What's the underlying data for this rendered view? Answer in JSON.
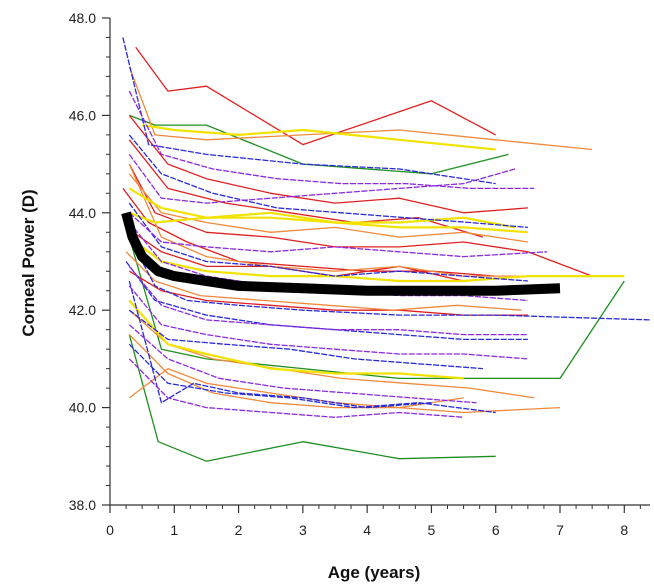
{
  "chart_data": {
    "type": "line",
    "title": "",
    "xlabel": "Age (years)",
    "ylabel": "Corneal Power (D)",
    "xlim": [
      0,
      8.4
    ],
    "ylim": [
      38.0,
      48.0
    ],
    "x_ticks": [
      "0",
      "1",
      "2",
      "3",
      "4",
      "5",
      "6",
      "7",
      "8"
    ],
    "y_ticks": [
      "38.0",
      "40.0",
      "42.0",
      "44.0",
      "46.0",
      "48.0"
    ],
    "grid": false,
    "legend": "none",
    "colors": {
      "red": "#e02020",
      "orange": "#f08a3c",
      "yellow": "#f2e200",
      "blue": "#2a2ad8",
      "purple": "#8a2be2",
      "green": "#1f8f1f",
      "mean": "#000000"
    },
    "mean_series": {
      "x": [
        0.25,
        0.35,
        0.5,
        0.75,
        1.0,
        1.5,
        2.0,
        3.0,
        4.0,
        5.0,
        6.0,
        7.0
      ],
      "y": [
        44.0,
        43.5,
        43.1,
        42.8,
        42.7,
        42.6,
        42.5,
        42.45,
        42.4,
        42.4,
        42.4,
        42.45
      ]
    },
    "series": [
      {
        "color": "green",
        "x": [
          0.3,
          0.75,
          1.5,
          3.0,
          4.5,
          6.0
        ],
        "y": [
          41.5,
          39.3,
          38.9,
          39.3,
          38.95,
          39.0
        ]
      },
      {
        "color": "green",
        "x": [
          0.3,
          0.8,
          1.5,
          3.0,
          4.5,
          6.0,
          7.0,
          8.0
        ],
        "y": [
          43.5,
          41.2,
          41.0,
          40.8,
          40.6,
          40.6,
          40.6,
          42.6
        ]
      },
      {
        "color": "green",
        "x": [
          0.3,
          0.7,
          1.5,
          3.0,
          5.0,
          6.2
        ],
        "y": [
          46.0,
          45.8,
          45.8,
          45.0,
          44.8,
          45.2
        ]
      },
      {
        "color": "red",
        "x": [
          0.4,
          0.9,
          1.5,
          3.0,
          5.0,
          6.0
        ],
        "y": [
          47.4,
          46.5,
          46.6,
          45.4,
          46.3,
          45.6
        ]
      },
      {
        "color": "red",
        "x": [
          0.3,
          0.9,
          1.5,
          2.5,
          3.5,
          4.5,
          5.5,
          6.5
        ],
        "y": [
          46.0,
          45.0,
          44.7,
          44.4,
          44.2,
          44.3,
          44.0,
          44.1
        ]
      },
      {
        "color": "red",
        "x": [
          0.3,
          0.7,
          1.5,
          2.5,
          3.5,
          4.5,
          5.5,
          6.5,
          7.5
        ],
        "y": [
          45.0,
          44.0,
          43.6,
          43.5,
          43.3,
          43.3,
          43.4,
          43.2,
          42.7
        ]
      },
      {
        "color": "red",
        "x": [
          0.2,
          0.6,
          1.2,
          2.0,
          3.0,
          4.0,
          5.0,
          6.0
        ],
        "y": [
          44.5,
          43.8,
          43.4,
          43.0,
          42.9,
          42.8,
          42.8,
          42.7
        ]
      },
      {
        "color": "red",
        "x": [
          0.25,
          0.8,
          1.5,
          2.5,
          3.5,
          4.5,
          5.5
        ],
        "y": [
          43.7,
          43.2,
          42.9,
          42.9,
          42.7,
          42.9,
          42.6
        ]
      },
      {
        "color": "red",
        "x": [
          0.3,
          0.8,
          1.5,
          2.5,
          3.5,
          4.5,
          5.5,
          6.5
        ],
        "y": [
          42.8,
          42.4,
          42.2,
          42.1,
          42.0,
          42.0,
          41.9,
          41.9
        ]
      },
      {
        "color": "red",
        "x": [
          0.3,
          0.9,
          1.8,
          2.8,
          3.8,
          4.8,
          5.8
        ],
        "y": [
          45.5,
          44.5,
          44.2,
          44.0,
          43.8,
          43.9,
          43.5
        ]
      },
      {
        "color": "orange",
        "x": [
          0.3,
          0.7,
          1.5,
          3.0,
          4.5,
          6.0,
          7.5
        ],
        "y": [
          47.0,
          45.6,
          45.5,
          45.6,
          45.7,
          45.5,
          45.3
        ]
      },
      {
        "color": "orange",
        "x": [
          0.3,
          0.8,
          1.5,
          2.5,
          3.5,
          4.5,
          5.5,
          6.5
        ],
        "y": [
          44.8,
          44.0,
          43.8,
          43.6,
          43.7,
          43.5,
          43.6,
          43.4
        ]
      },
      {
        "color": "orange",
        "x": [
          0.25,
          0.7,
          1.4,
          2.4,
          3.4,
          4.4,
          5.4,
          6.4
        ],
        "y": [
          43.2,
          42.6,
          42.3,
          42.2,
          42.1,
          42.0,
          42.1,
          42.0
        ]
      },
      {
        "color": "orange",
        "x": [
          0.3,
          0.9,
          1.6,
          2.6,
          3.6,
          4.6,
          5.6,
          6.6
        ],
        "y": [
          42.0,
          41.3,
          41.0,
          40.8,
          40.6,
          40.5,
          40.4,
          40.2
        ]
      },
      {
        "color": "orange",
        "x": [
          0.3,
          0.9,
          1.6,
          2.5,
          3.5,
          4.5,
          5.5,
          7.0
        ],
        "y": [
          41.5,
          40.7,
          40.3,
          40.1,
          40.0,
          40.0,
          39.9,
          40.0
        ]
      },
      {
        "color": "orange",
        "x": [
          0.3,
          0.9,
          1.5,
          2.5,
          3.5,
          4.5,
          5.5
        ],
        "y": [
          40.2,
          40.8,
          40.5,
          40.3,
          40.1,
          40.0,
          40.2
        ]
      },
      {
        "color": "orange",
        "x": [
          0.3,
          0.8,
          1.5,
          2.5,
          3.5,
          4.5,
          5.5,
          6.5
        ],
        "y": [
          45.0,
          43.5,
          43.1,
          42.9,
          42.8,
          42.9,
          42.7,
          42.7
        ]
      },
      {
        "color": "yellow",
        "x": [
          0.5,
          1.0,
          2.0,
          3.0,
          4.5,
          6.0
        ],
        "y": [
          45.8,
          45.7,
          45.6,
          45.7,
          45.5,
          45.3
        ]
      },
      {
        "color": "yellow",
        "x": [
          0.3,
          0.8,
          1.5,
          2.5,
          3.5,
          4.5,
          5.5,
          6.5
        ],
        "y": [
          44.5,
          44.1,
          43.9,
          43.9,
          43.8,
          43.7,
          43.7,
          43.6
        ]
      },
      {
        "color": "yellow",
        "x": [
          0.3,
          0.8,
          1.5,
          2.5,
          3.5,
          4.5,
          5.5,
          6.5,
          8.0
        ],
        "y": [
          43.5,
          43.0,
          42.8,
          42.7,
          42.7,
          42.6,
          42.6,
          42.7,
          42.7
        ]
      },
      {
        "color": "yellow",
        "x": [
          0.3,
          0.9,
          1.5,
          2.5,
          3.5,
          4.5,
          5.5
        ],
        "y": [
          42.2,
          41.3,
          41.1,
          40.8,
          40.7,
          40.7,
          40.6
        ]
      },
      {
        "color": "yellow",
        "x": [
          0.3,
          0.7,
          1.5,
          2.5,
          3.5,
          4.5,
          5.5,
          6.3
        ],
        "y": [
          44.0,
          43.8,
          43.9,
          44.0,
          43.8,
          43.8,
          43.9,
          43.7
        ]
      },
      {
        "color": "blue",
        "x": [
          0.2,
          0.6,
          1.5,
          3.0,
          4.5,
          6.0
        ],
        "y": [
          47.6,
          45.4,
          45.2,
          45.0,
          44.9,
          44.6
        ]
      },
      {
        "color": "blue",
        "x": [
          0.3,
          0.8,
          1.5,
          2.5,
          3.5,
          4.5,
          5.5,
          6.5
        ],
        "y": [
          44.2,
          43.3,
          43.0,
          42.9,
          42.7,
          42.8,
          42.7,
          42.6
        ]
      },
      {
        "color": "blue",
        "x": [
          0.25,
          0.7,
          1.5,
          2.5,
          3.5,
          4.5,
          5.5,
          6.5
        ],
        "y": [
          43.0,
          42.2,
          41.9,
          41.7,
          41.6,
          41.5,
          41.4,
          41.4
        ]
      },
      {
        "color": "blue",
        "x": [
          0.3,
          0.9,
          1.8,
          2.8,
          3.8,
          4.8,
          5.8
        ],
        "y": [
          42.0,
          41.4,
          41.3,
          41.2,
          41.0,
          40.9,
          40.8
        ]
      },
      {
        "color": "blue",
        "x": [
          0.3,
          0.9,
          1.8,
          2.8,
          3.8,
          4.8,
          6.0
        ],
        "y": [
          41.3,
          40.5,
          40.3,
          40.2,
          40.0,
          40.1,
          39.9
        ]
      },
      {
        "color": "blue",
        "x": [
          0.3,
          0.8,
          1.6,
          2.6,
          3.6,
          4.6,
          5.6,
          6.5
        ],
        "y": [
          45.6,
          44.8,
          44.4,
          44.1,
          44.0,
          43.9,
          43.8,
          43.7
        ]
      },
      {
        "color": "blue",
        "x": [
          0.3,
          0.7,
          1.2,
          2.0,
          3.0,
          4.5,
          6.0,
          8.4
        ],
        "y": [
          43.5,
          42.5,
          42.2,
          42.1,
          42.0,
          41.9,
          41.9,
          41.8
        ]
      },
      {
        "color": "blue",
        "x": [
          0.3,
          0.8,
          1.3,
          2.0,
          3.0,
          4.0,
          5.0
        ],
        "y": [
          42.6,
          40.1,
          40.5,
          40.3,
          40.2,
          40.0,
          40.1
        ]
      },
      {
        "color": "purple",
        "x": [
          0.3,
          0.8,
          1.6,
          2.6,
          3.6,
          4.6,
          5.6,
          6.6
        ],
        "y": [
          46.5,
          45.2,
          44.9,
          44.7,
          44.6,
          44.6,
          44.5,
          44.5
        ]
      },
      {
        "color": "purple",
        "x": [
          0.3,
          0.8,
          1.5,
          2.5,
          3.5,
          4.5,
          5.5,
          6.5
        ],
        "y": [
          43.8,
          43.0,
          42.7,
          42.5,
          42.4,
          42.3,
          42.3,
          42.2
        ]
      },
      {
        "color": "purple",
        "x": [
          0.3,
          0.8,
          1.5,
          2.5,
          3.5,
          4.5,
          5.5,
          6.5
        ],
        "y": [
          42.5,
          41.7,
          41.5,
          41.3,
          41.2,
          41.1,
          41.1,
          41.0
        ]
      },
      {
        "color": "purple",
        "x": [
          0.3,
          0.9,
          1.7,
          2.7,
          3.7,
          4.7,
          5.7
        ],
        "y": [
          41.7,
          41.0,
          40.6,
          40.4,
          40.3,
          40.2,
          40.1
        ]
      },
      {
        "color": "purple",
        "x": [
          0.3,
          0.8,
          1.5,
          2.5,
          3.5,
          4.5,
          5.5,
          6.3
        ],
        "y": [
          45.2,
          44.3,
          44.2,
          44.3,
          44.4,
          44.5,
          44.6,
          44.9
        ]
      },
      {
        "color": "purple",
        "x": [
          0.3,
          0.8,
          1.5,
          2.5,
          3.5,
          4.5,
          5.5,
          6.8
        ],
        "y": [
          44.0,
          43.4,
          43.3,
          43.2,
          43.3,
          43.2,
          43.1,
          43.2
        ]
      },
      {
        "color": "purple",
        "x": [
          0.3,
          0.9,
          1.5,
          2.5,
          3.5,
          4.5,
          5.5
        ],
        "y": [
          41.0,
          40.2,
          40.0,
          39.9,
          39.8,
          39.9,
          39.8
        ]
      },
      {
        "color": "purple",
        "x": [
          0.3,
          0.8,
          1.5,
          2.5,
          3.5,
          4.5,
          5.5,
          6.5
        ],
        "y": [
          42.9,
          42.1,
          41.8,
          41.7,
          41.6,
          41.6,
          41.5,
          41.5
        ]
      }
    ]
  }
}
